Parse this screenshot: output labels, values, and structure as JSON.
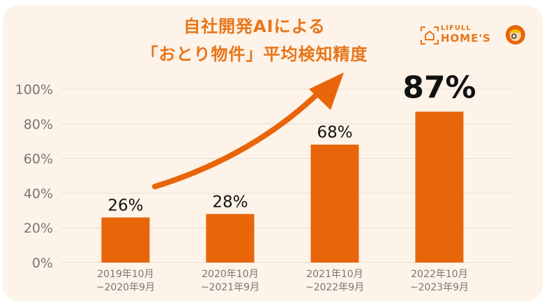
{
  "title_line1": "自社開発AIによる",
  "title_line2": "「おとり物件」平均検知精度",
  "logo": {
    "line1": "LIFULL",
    "line2": "HOME'S"
  },
  "colors": {
    "bar": "#e8650a",
    "title": "#e8751a",
    "background": "#fdf3e8",
    "grid": "#e6ddd4"
  },
  "chart_data": {
    "type": "bar",
    "categories": [
      [
        "2019年10月",
        "~2020年9月"
      ],
      [
        "2020年10月",
        "~2021年9月"
      ],
      [
        "2021年10月",
        "~2022年9月"
      ],
      [
        "2022年10月",
        "~2023年9月"
      ]
    ],
    "values": [
      26,
      28,
      68,
      87
    ],
    "data_labels": [
      "26%",
      "28%",
      "68%",
      "87%"
    ],
    "yticks": [
      "0%",
      "20%",
      "40%",
      "60%",
      "80%",
      "100%"
    ],
    "ylim": [
      0,
      100
    ],
    "grid": true,
    "annotation": "upward-trend-arrow"
  }
}
